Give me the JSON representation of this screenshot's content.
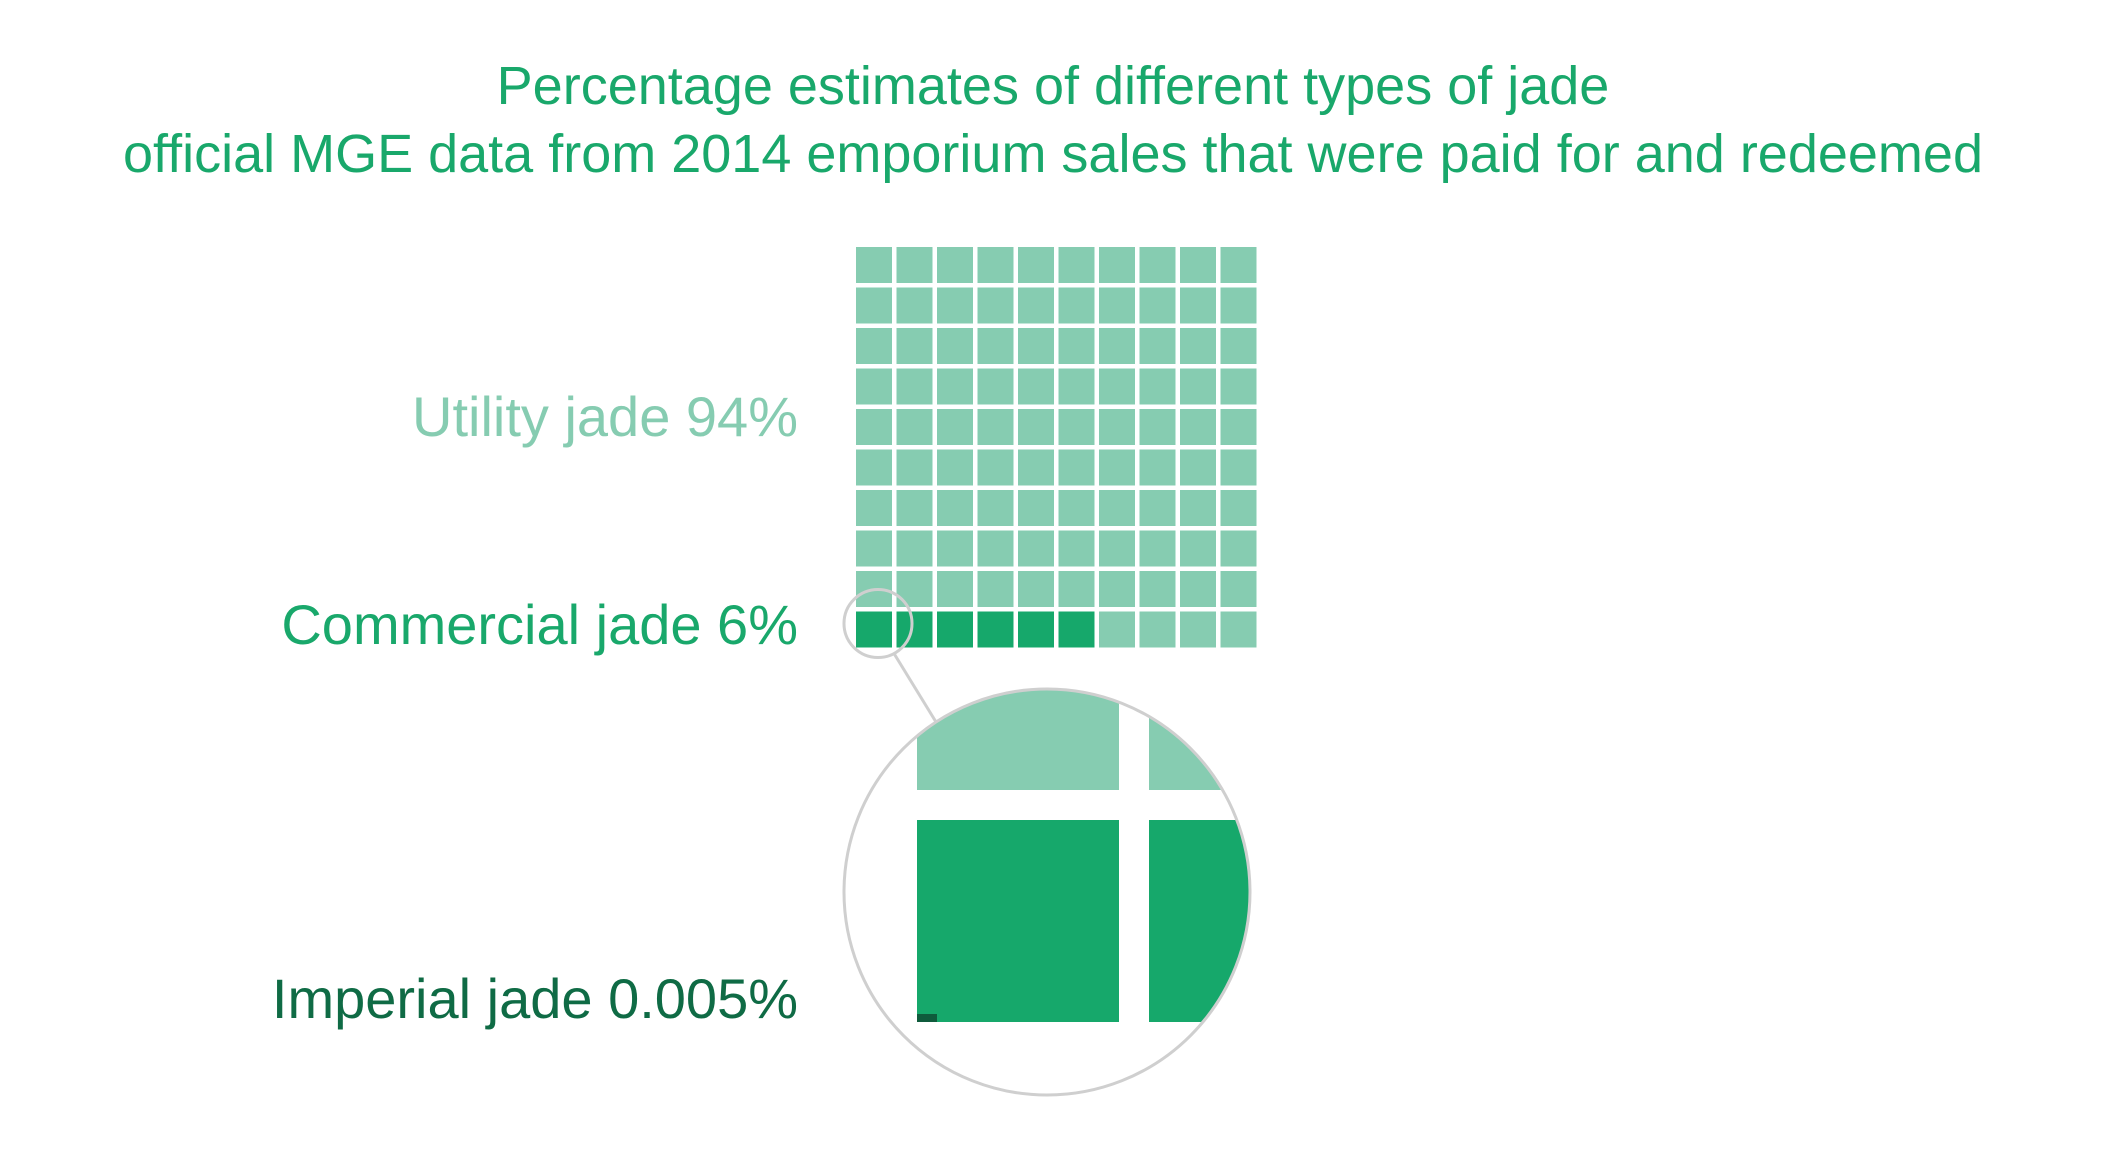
{
  "chart_data": {
    "type": "waffle",
    "title": "Percentage estimates of different types of jade",
    "subtitle": "official MGE data from 2014 emporium sales that were paid for and redeemed",
    "grid": {
      "rows": 10,
      "cols": 10
    },
    "categories": [
      {
        "name": "Utility jade",
        "value": 94,
        "label": "Utility jade 94%",
        "color": "#86ccb1"
      },
      {
        "name": "Commercial jade",
        "value": 6,
        "label": "Commercial jade 6%",
        "color": "#16a86b"
      },
      {
        "name": "Imperial jade",
        "value": 0.005,
        "label": "Imperial jade 0.005%",
        "color": "#0f5b3c"
      }
    ],
    "magnifier": {
      "shows": "bottom-left squares",
      "border_color": "#cfcfcf"
    }
  },
  "colors": {
    "title": "#19a86b",
    "utility": "#86ccb1",
    "commercial": "#16a86b",
    "imperial": "#0f5b3c",
    "magnifier_border": "#cfcfcf"
  }
}
